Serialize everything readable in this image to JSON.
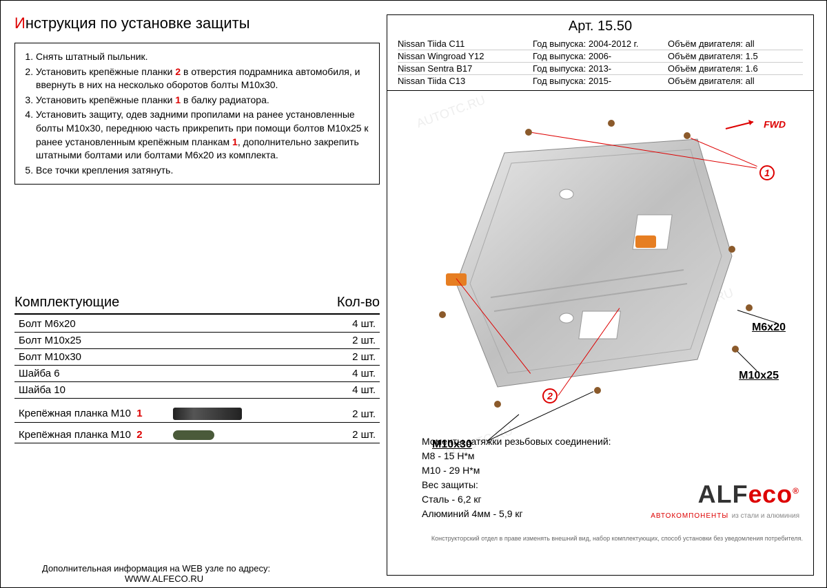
{
  "title_prefix": "И",
  "title_rest": "нструкция по установке защиты",
  "instructions": [
    "Снять штатный пыльник.",
    "Установить крепёжные планки <span class='red-num'>2</span> в отверстия подрамника автомобиля, и ввернуть в них на несколько оборотов болты М10х30.",
    "Установить крепёжные планки <span class='red-num'>1</span> в балку радиатора.",
    "Установить защиту, одев задними пропилами на ранее установленные болты М10х30, переднюю часть прикрепить при помощи болтов М10х25 к ранее установленным крепёжным планкам <span class='red-num'>1</span>, дополнительно закрепить штатными болтами или болтами М6х20 из комплекта.",
    "Все точки крепления затянуть."
  ],
  "components_title": "Комплектующие",
  "qty_title": "Кол-во",
  "components": [
    {
      "name": "Болт М6х20",
      "qty": "4 шт."
    },
    {
      "name": "Болт М10х25",
      "qty": "2 шт."
    },
    {
      "name": "Болт М10х30",
      "qty": "2 шт."
    },
    {
      "name": "Шайба 6",
      "qty": "4 шт."
    },
    {
      "name": "Шайба 10",
      "qty": "4 шт."
    }
  ],
  "brackets": [
    {
      "name": "Крепёжная планка М10",
      "num": "1",
      "qty": "2 шт."
    },
    {
      "name": "Крепёжная планка М10",
      "num": "2",
      "qty": "2 шт."
    }
  ],
  "web_info": "Дополнительная информация на WEB узле по адресу:",
  "web_url": "WWW.ALFECO.RU",
  "art_label": "Арт.",
  "art_num": "15.50",
  "vehicles": [
    {
      "model": "Nissan Tiida C11",
      "year": "Год выпуска: 2004-2012 г.",
      "engine": "Объём двигателя: all"
    },
    {
      "model": "Nissan Wingroad Y12",
      "year": "Год выпуска: 2006-",
      "engine": "Объём двигателя: 1.5"
    },
    {
      "model": "Nissan Sentra B17",
      "year": "Год выпуска: 2013-",
      "engine": "Объём двигателя: 1.6"
    },
    {
      "model": "Nissan Tiida C13",
      "year": "Год выпуска: 2015-",
      "engine": "Объём двигателя: all"
    }
  ],
  "fwd": "FWD",
  "labels": {
    "m6x20": "M6x20",
    "m10x25": "M10x25",
    "m10x30": "M10x30"
  },
  "torque_header": "Моменты затяжки резьбовых соединений:",
  "torque_m8": "М8 - 15 Н*м",
  "torque_m10": "М10 - 29 Н*м",
  "weight_header": "Вес защиты:",
  "weight_steel": "Сталь - 6,2 кг",
  "weight_alu": "Алюминий 4мм - 5,9 кг",
  "logo_main": "ALF",
  "logo_eco": "есо",
  "logo_sub": "АВТОКОМПОНЕНТЫ",
  "logo_sub2": "из стали и алюминия",
  "disclaimer": "Конструкторский отдел в праве изменять внешний вид, набор комплектующих, способ установки без уведомления потребителя.",
  "watermark": "AUTOTC.RU",
  "colors": {
    "red": "#d00",
    "plate": "#c8c8c8",
    "bolt": "#8b5a2b",
    "orange": "#e67e22"
  }
}
